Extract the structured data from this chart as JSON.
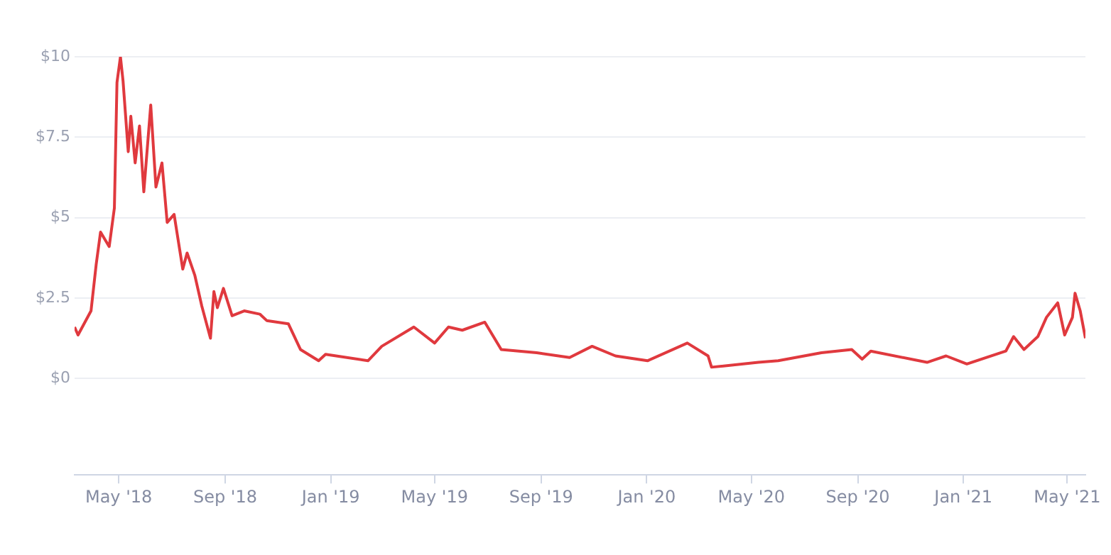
{
  "chart_data": {
    "type": "line",
    "x": [
      "2018-03-11",
      "2018-03-15",
      "2018-03-30",
      "2018-04-05",
      "2018-04-10",
      "2018-04-20",
      "2018-04-26",
      "2018-04-29",
      "2018-05-03",
      "2018-05-06",
      "2018-05-12",
      "2018-05-15",
      "2018-05-20",
      "2018-05-25",
      "2018-05-30",
      "2018-06-07",
      "2018-06-13",
      "2018-06-20",
      "2018-06-26",
      "2018-07-04",
      "2018-07-14",
      "2018-07-19",
      "2018-07-28",
      "2018-08-05",
      "2018-08-15",
      "2018-08-19",
      "2018-08-23",
      "2018-08-30",
      "2018-09-09",
      "2018-09-23",
      "2018-10-11",
      "2018-10-19",
      "2018-11-13",
      "2018-11-27",
      "2018-12-18",
      "2018-12-26",
      "2019-02-13",
      "2019-03-01",
      "2019-04-07",
      "2019-05-01",
      "2019-05-17",
      "2019-06-02",
      "2019-06-28",
      "2019-07-17",
      "2019-08-27",
      "2019-10-04",
      "2019-10-30",
      "2019-11-26",
      "2020-01-02",
      "2020-02-17",
      "2020-03-12",
      "2020-03-16",
      "2020-05-09",
      "2020-06-01",
      "2020-07-21",
      "2020-08-25",
      "2020-09-06",
      "2020-09-16",
      "2020-11-20",
      "2020-12-12",
      "2021-01-05",
      "2021-02-19",
      "2021-02-28",
      "2021-03-12",
      "2021-03-28",
      "2021-04-07",
      "2021-04-20",
      "2021-04-28",
      "2021-05-07",
      "2021-05-10",
      "2021-05-16",
      "2021-05-22"
    ],
    "series": [
      {
        "color": "#e0393e",
        "values": [
          1.6,
          1.35,
          2.1,
          3.55,
          4.55,
          4.1,
          5.3,
          9.2,
          10.0,
          9.25,
          7.05,
          8.15,
          6.7,
          7.85,
          5.8,
          8.5,
          5.95,
          6.7,
          4.85,
          5.1,
          3.4,
          3.9,
          3.2,
          2.25,
          1.25,
          2.7,
          2.2,
          2.8,
          1.95,
          2.1,
          2.0,
          1.8,
          1.7,
          0.9,
          0.55,
          0.75,
          0.55,
          1.0,
          1.6,
          1.1,
          1.6,
          1.5,
          1.75,
          0.9,
          0.8,
          0.65,
          1.0,
          0.7,
          0.55,
          1.1,
          0.7,
          0.35,
          0.5,
          0.55,
          0.8,
          0.9,
          0.6,
          0.85,
          0.5,
          0.7,
          0.45,
          0.85,
          1.3,
          0.9,
          1.3,
          1.9,
          2.35,
          1.35,
          1.9,
          2.65,
          2.1,
          1.25
        ]
      }
    ],
    "xlim": [
      "2018-03-11",
      "2021-05-22"
    ],
    "xticks": [
      {
        "value": "2018-05-01",
        "label": "May '18"
      },
      {
        "value": "2018-09-01",
        "label": "Sep '18"
      },
      {
        "value": "2019-01-01",
        "label": "Jan '19"
      },
      {
        "value": "2019-05-01",
        "label": "May '19"
      },
      {
        "value": "2019-09-01",
        "label": "Sep '19"
      },
      {
        "value": "2020-01-01",
        "label": "Jan '20"
      },
      {
        "value": "2020-05-01",
        "label": "May '20"
      },
      {
        "value": "2020-09-01",
        "label": "Sep '20"
      },
      {
        "value": "2021-01-01",
        "label": "Jan '21"
      },
      {
        "value": "2021-05-01",
        "label": "May '21"
      }
    ],
    "ylim": [
      -3,
      10
    ],
    "yticks": [
      {
        "value": 0,
        "label": "$0"
      },
      {
        "value": 2.5,
        "label": "$2.5"
      },
      {
        "value": 5,
        "label": "$5"
      },
      {
        "value": 7.5,
        "label": "$7.5"
      },
      {
        "value": 10,
        "label": "$10"
      }
    ],
    "grid": "y",
    "legend": false,
    "marker": "none",
    "line_style": "solid"
  }
}
